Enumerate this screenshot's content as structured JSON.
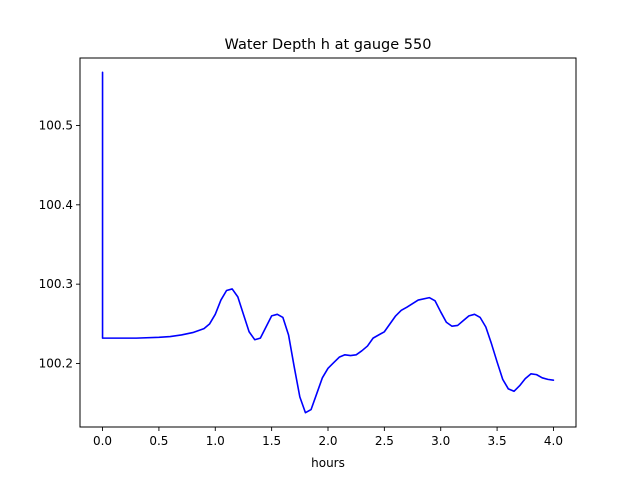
{
  "chart_data": {
    "type": "line",
    "title": "Water Depth h at gauge 550",
    "xlabel": "hours",
    "ylabel": "",
    "xlim": [
      -0.2,
      4.2
    ],
    "ylim": [
      100.12,
      100.585
    ],
    "x_ticks": [
      0.0,
      0.5,
      1.0,
      1.5,
      2.0,
      2.5,
      3.0,
      3.5,
      4.0
    ],
    "x_tick_labels": [
      "0.0",
      "0.5",
      "1.0",
      "1.5",
      "2.0",
      "2.5",
      "3.0",
      "3.5",
      "4.0"
    ],
    "y_ticks": [
      100.2,
      100.3,
      100.4,
      100.5
    ],
    "y_tick_labels": [
      "100.2",
      "100.3",
      "100.4",
      "100.5"
    ],
    "grid": false,
    "legend": "none",
    "series": [
      {
        "color": "#0000ff",
        "x": [
          0.0,
          0.0,
          0.1,
          0.3,
          0.5,
          0.6,
          0.7,
          0.8,
          0.9,
          0.95,
          1.0,
          1.05,
          1.1,
          1.15,
          1.2,
          1.25,
          1.3,
          1.35,
          1.4,
          1.45,
          1.5,
          1.55,
          1.6,
          1.65,
          1.7,
          1.75,
          1.8,
          1.85,
          1.9,
          1.95,
          2.0,
          2.05,
          2.1,
          2.15,
          2.2,
          2.25,
          2.3,
          2.35,
          2.4,
          2.5,
          2.6,
          2.65,
          2.7,
          2.8,
          2.9,
          2.95,
          3.0,
          3.05,
          3.1,
          3.15,
          3.2,
          3.25,
          3.3,
          3.35,
          3.4,
          3.45,
          3.5,
          3.55,
          3.6,
          3.65,
          3.7,
          3.75,
          3.8,
          3.85,
          3.9,
          3.95,
          4.0
        ],
        "y": [
          100.567,
          100.232,
          100.232,
          100.232,
          100.233,
          100.234,
          100.236,
          100.239,
          100.244,
          100.25,
          100.262,
          100.28,
          100.292,
          100.294,
          100.284,
          100.262,
          100.24,
          100.23,
          100.232,
          100.246,
          100.26,
          100.262,
          100.258,
          100.236,
          100.196,
          100.158,
          100.138,
          100.142,
          100.162,
          100.182,
          100.194,
          100.201,
          100.208,
          100.211,
          100.21,
          100.211,
          100.216,
          100.222,
          100.232,
          100.24,
          100.26,
          100.267,
          100.271,
          100.28,
          100.283,
          100.279,
          100.265,
          100.252,
          100.247,
          100.248,
          100.254,
          100.26,
          100.262,
          100.258,
          100.246,
          100.225,
          100.202,
          100.18,
          100.168,
          100.165,
          100.172,
          100.181,
          100.187,
          100.186,
          100.182,
          100.18,
          100.179
        ]
      }
    ]
  }
}
